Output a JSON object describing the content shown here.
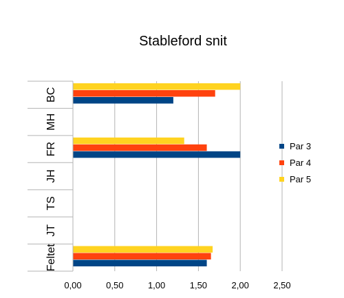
{
  "chart_data": {
    "type": "bar",
    "orientation": "horizontal",
    "title": "Stableford snit",
    "categories": [
      "BC",
      "MH",
      "FR",
      "JH",
      "TS",
      "JT",
      "Feltet"
    ],
    "series": [
      {
        "name": "Par 3",
        "color": "#004586",
        "values": [
          1.2,
          null,
          2.0,
          null,
          null,
          null,
          1.6
        ]
      },
      {
        "name": "Par 4",
        "color": "#ff420e",
        "values": [
          1.7,
          null,
          1.6,
          null,
          null,
          null,
          1.65
        ]
      },
      {
        "name": "Par 5",
        "color": "#ffd320",
        "values": [
          2.0,
          null,
          1.33,
          null,
          null,
          null,
          1.67
        ]
      }
    ],
    "x_ticks": [
      "0,00",
      "0,50",
      "1,00",
      "1,50",
      "2,00",
      "2,50"
    ],
    "xlim": [
      0,
      2.5
    ],
    "grid": true,
    "legend_position": "right"
  }
}
